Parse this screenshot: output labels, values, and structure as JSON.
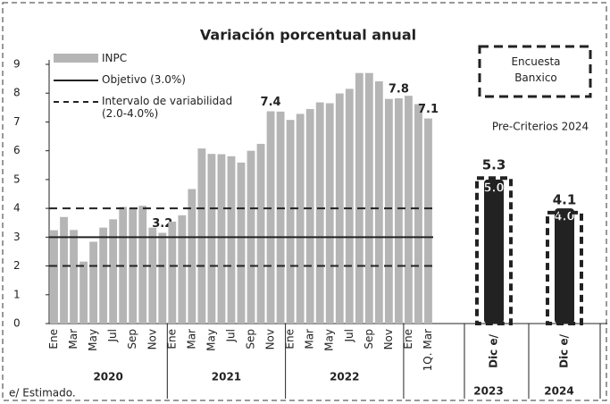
{
  "chart_data": {
    "type": "bar",
    "title": "Variación porcentual anual",
    "categories": [
      "Ene",
      null,
      "Mar",
      null,
      "May",
      null,
      "Jul",
      null,
      "Sep",
      null,
      "Nov",
      null,
      "Ene",
      null,
      "Mar",
      null,
      "May",
      null,
      "Jul",
      null,
      "Sep",
      null,
      "Nov",
      null,
      "Ene",
      null,
      "Mar",
      null,
      "May",
      null,
      "Jul",
      null,
      "Sep",
      null,
      "Nov",
      null,
      "Ene",
      null,
      "1Q. Mar"
    ],
    "years": [
      "2020",
      "2021",
      "2022"
    ],
    "series": [
      {
        "name": "INPC",
        "color": "#b5b5b5",
        "values": [
          3.24,
          3.7,
          3.25,
          2.15,
          2.84,
          3.33,
          3.62,
          4.05,
          4.01,
          4.09,
          3.33,
          3.15,
          3.54,
          3.76,
          4.67,
          6.08,
          5.89,
          5.88,
          5.81,
          5.59,
          6.0,
          6.24,
          7.37,
          7.36,
          7.07,
          7.28,
          7.45,
          7.68,
          7.65,
          7.99,
          8.15,
          8.7,
          8.7,
          8.41,
          7.8,
          7.82,
          7.91,
          7.62,
          7.12
        ],
        "value_labels": [
          null,
          null,
          null,
          null,
          null,
          null,
          null,
          null,
          null,
          null,
          null,
          "3.2",
          null,
          null,
          null,
          null,
          null,
          null,
          null,
          null,
          null,
          null,
          "7.4",
          null,
          null,
          null,
          null,
          null,
          null,
          null,
          null,
          null,
          null,
          null,
          null,
          "7.8",
          null,
          null,
          "7.1"
        ]
      }
    ],
    "reference_lines": [
      {
        "name": "Objetivo (3.0%)",
        "value": 3,
        "style": "solid",
        "color": "#222"
      },
      {
        "name": "Intervalo de variabilidad (2.0-4.0%)",
        "values": [
          2,
          4
        ],
        "style": "dashed",
        "color": "#222"
      }
    ],
    "ylim": [
      0,
      9
    ],
    "yticks": [
      0,
      1,
      2,
      3,
      4,
      5,
      6,
      7,
      8,
      9
    ],
    "forecast": {
      "categories": [
        "Dic e/",
        "Dic e/"
      ],
      "years": [
        "2023",
        "2024"
      ],
      "series": [
        {
          "name": "Pre-Criterios 2024",
          "color": "#222",
          "values": [
            5.0,
            4.0
          ],
          "value_labels": [
            "5.0",
            "4.0"
          ]
        },
        {
          "name": "Encuesta Banxico",
          "color": "#222",
          "values": [
            5.3,
            4.1
          ]
        }
      ]
    },
    "footnote": "e/ Estimado."
  }
}
